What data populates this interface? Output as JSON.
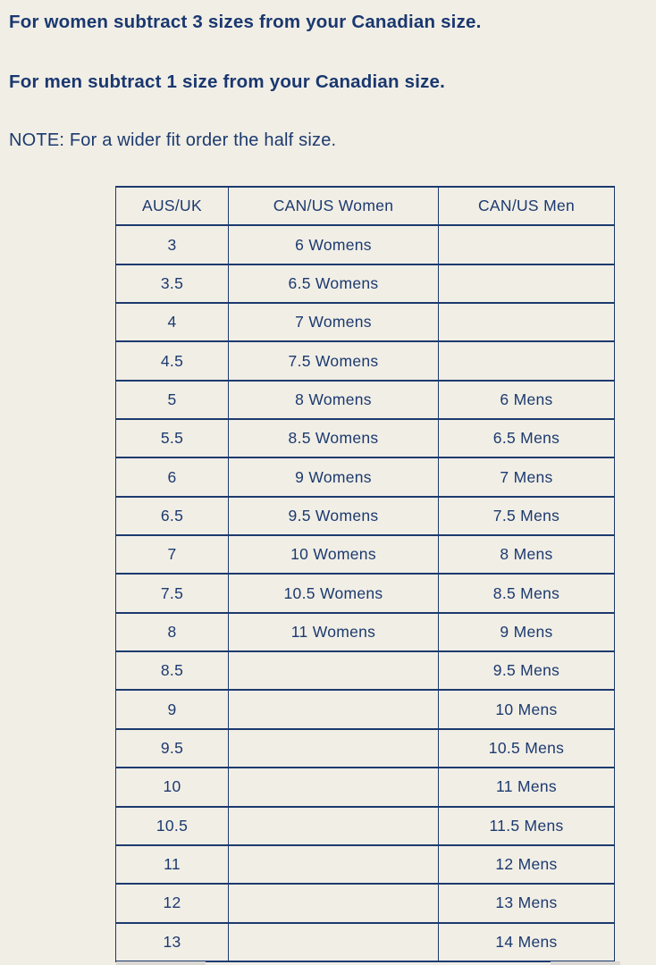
{
  "instructions": {
    "women": "For women subtract 3 sizes from your Canadian size.",
    "men": "For men subtract 1 size from your Canadian size.",
    "note": "NOTE: For a wider fit order the half size."
  },
  "table": {
    "headers": [
      "AUS/UK",
      "CAN/US Women",
      "CAN/US Men"
    ],
    "rows": [
      {
        "aus": "3",
        "women": "6 Womens",
        "men": ""
      },
      {
        "aus": "3.5",
        "women": "6.5 Womens",
        "men": ""
      },
      {
        "aus": "4",
        "women": "7 Womens",
        "men": ""
      },
      {
        "aus": "4.5",
        "women": "7.5 Womens",
        "men": ""
      },
      {
        "aus": "5",
        "women": "8 Womens",
        "men": "6 Mens"
      },
      {
        "aus": "5.5",
        "women": "8.5 Womens",
        "men": "6.5 Mens"
      },
      {
        "aus": "6",
        "women": "9 Womens",
        "men": "7 Mens"
      },
      {
        "aus": "6.5",
        "women": "9.5 Womens",
        "men": "7.5 Mens"
      },
      {
        "aus": "7",
        "women": "10 Womens",
        "men": "8 Mens"
      },
      {
        "aus": "7.5",
        "women": "10.5 Womens",
        "men": "8.5 Mens"
      },
      {
        "aus": "8",
        "women": "11 Womens",
        "men": "9 Mens"
      },
      {
        "aus": "8.5",
        "women": "",
        "men": "9.5 Mens"
      },
      {
        "aus": "9",
        "women": "",
        "men": "10 Mens"
      },
      {
        "aus": "9.5",
        "women": "",
        "men": "10.5 Mens"
      },
      {
        "aus": "10",
        "women": "",
        "men": "11 Mens"
      },
      {
        "aus": "10.5",
        "women": "",
        "men": "11.5 Mens"
      },
      {
        "aus": "11",
        "women": "",
        "men": "12 Mens"
      },
      {
        "aus": "12",
        "women": "",
        "men": "13 Mens"
      },
      {
        "aus": "13",
        "women": "",
        "men": "14 Mens"
      }
    ]
  },
  "colors": {
    "background": "#f1eee6",
    "navy_text": "#1c3a6e",
    "table_border": "#1c3a6e"
  }
}
